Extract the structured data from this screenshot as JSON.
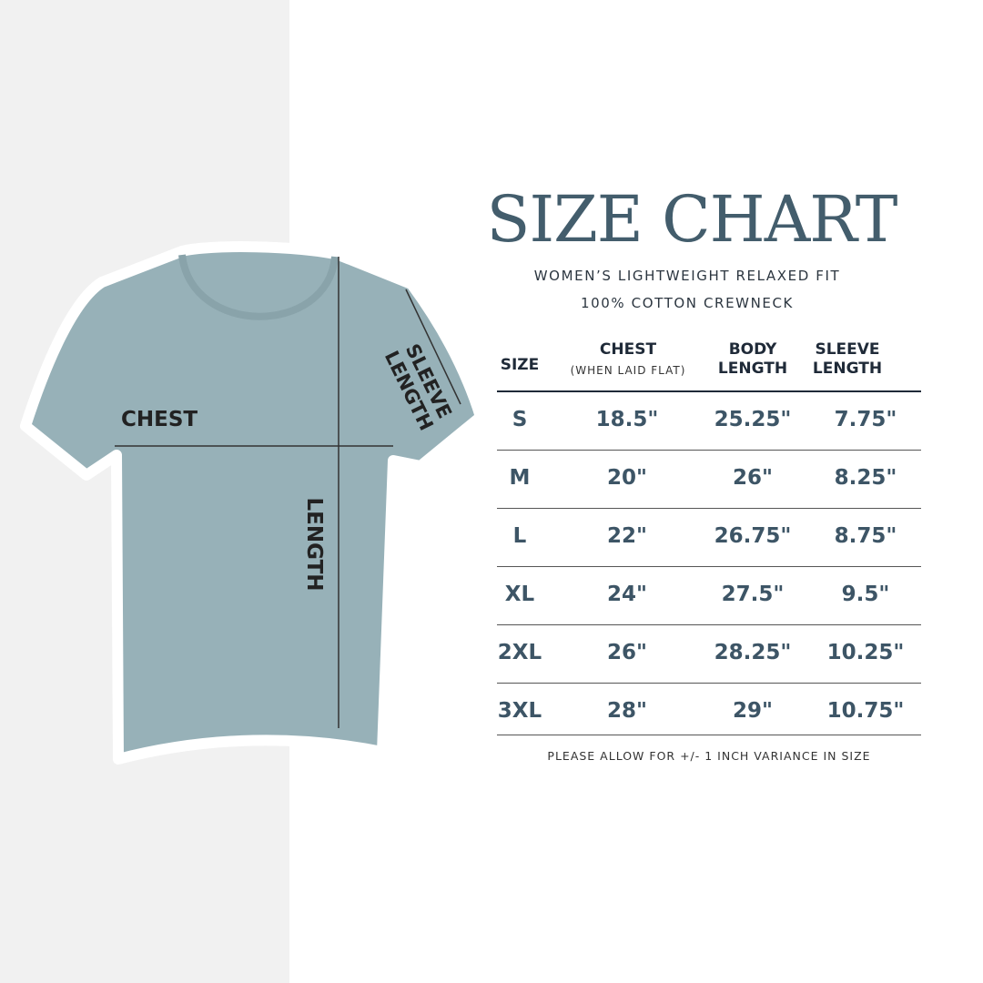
{
  "title": "SIZE CHART",
  "subtitle_line1": "WOMEN’S LIGHTWEIGHT RELAXED FIT",
  "subtitle_line2": "100% COTTON CREWNECK",
  "diagram_labels": {
    "chest": "CHEST",
    "sleeve": "SLEEVE",
    "sleeve2": "LENGTH",
    "length": "LENGTH"
  },
  "colors": {
    "shirt": "#97b1b8",
    "title": "#435d6c",
    "values": "#3d5566",
    "panel": "#f1f1f1"
  },
  "table": {
    "headers": {
      "size": "SIZE",
      "chest": "CHEST",
      "chest_note": "(WHEN LAID FLAT)",
      "body1": "BODY",
      "body2": "LENGTH",
      "sleeve1": "SLEEVE",
      "sleeve2": "LENGTH"
    },
    "rows": [
      [
        "S",
        "18.5\"",
        "25.25\"",
        "7.75\""
      ],
      [
        "M",
        "20\"",
        "26\"",
        "8.25\""
      ],
      [
        "L",
        "22\"",
        "26.75\"",
        "8.75\""
      ],
      [
        "XL",
        "24\"",
        "27.5\"",
        "9.5\""
      ],
      [
        "2XL",
        "26\"",
        "28.25\"",
        "10.25\""
      ],
      [
        "3XL",
        "28\"",
        "29\"",
        "10.75\""
      ]
    ]
  },
  "note": "PLEASE ALLOW FOR +/- 1 INCH VARIANCE IN SIZE"
}
